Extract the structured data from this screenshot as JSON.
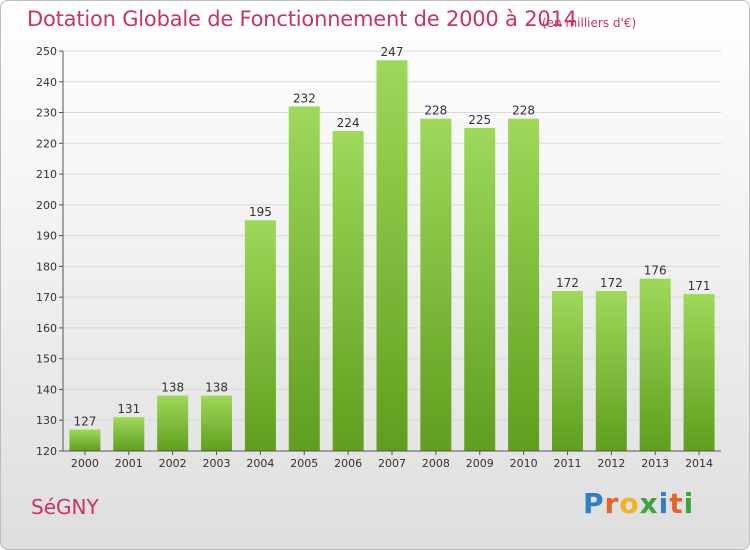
{
  "header": {
    "title": "Dotation Globale de Fonctionnement de 2000 à 2014",
    "unit": "(en milliers d'€)"
  },
  "commune": "SéGNY",
  "logo": {
    "text": "Proxiti",
    "letters": [
      {
        "char": "P",
        "color": "#2e7fc8"
      },
      {
        "char": "r",
        "color": "#e8632c"
      },
      {
        "char": "o",
        "color": "#f0b323"
      },
      {
        "char": "x",
        "color": "#3aa53c"
      },
      {
        "char": "i",
        "color": "#2e7fc8"
      },
      {
        "char": "t",
        "color": "#e8632c"
      },
      {
        "char": "i",
        "color": "#3aa53c"
      }
    ]
  },
  "colors": {
    "bar_top": "#9fd85a",
    "bar_bottom": "#5f9e1e",
    "accent": "#c8336b",
    "grid": "#d9d9d9",
    "axis": "#555555"
  },
  "chart_data": {
    "type": "bar",
    "categories": [
      "2000",
      "2001",
      "2002",
      "2003",
      "2004",
      "2005",
      "2006",
      "2007",
      "2008",
      "2009",
      "2010",
      "2011",
      "2012",
      "2013",
      "2014"
    ],
    "values": [
      127,
      131,
      138,
      138,
      195,
      232,
      224,
      247,
      228,
      225,
      228,
      172,
      172,
      176,
      171
    ],
    "title": "Dotation Globale de Fonctionnement de 2000 à 2014",
    "subtitle": "(en milliers d'€)",
    "xlabel": "",
    "ylabel": "",
    "ylim": [
      120,
      250
    ],
    "yticks": [
      120,
      130,
      140,
      150,
      160,
      170,
      180,
      190,
      200,
      210,
      220,
      230,
      240,
      250
    ],
    "grid": true,
    "legend": "none"
  }
}
